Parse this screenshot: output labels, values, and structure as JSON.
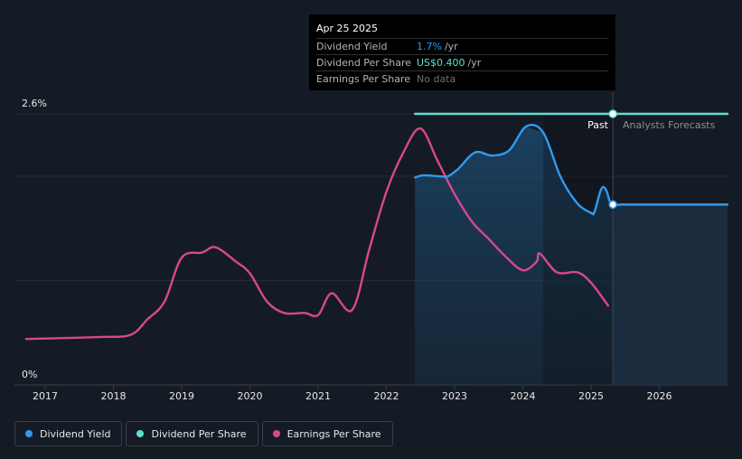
{
  "chart_data": {
    "type": "line",
    "y_axis": {
      "min_label": "0%",
      "max_label": "2.6%",
      "ylim": [
        0,
        2.6
      ]
    },
    "x_axis": {
      "xlim": [
        2016.55,
        2027.0
      ],
      "ticks": [
        "2017",
        "2018",
        "2019",
        "2020",
        "2021",
        "2022",
        "2023",
        "2024",
        "2025",
        "2026"
      ]
    },
    "past_label": "Past",
    "forecast_label": "Analysts Forecasts",
    "forecast_start": 2025.32,
    "shaded_start": 2022.42,
    "shaded_dark_start": 2024.3,
    "series": [
      {
        "name": "Dividend Yield",
        "color": "#2e9bf0",
        "points": [
          [
            2022.42,
            1.99
          ],
          [
            2022.55,
            2.01
          ],
          [
            2022.8,
            2.0
          ],
          [
            2022.9,
            2.0
          ],
          [
            2023.05,
            2.07
          ],
          [
            2023.3,
            2.23
          ],
          [
            2023.55,
            2.2
          ],
          [
            2023.8,
            2.25
          ],
          [
            2024.05,
            2.48
          ],
          [
            2024.3,
            2.42
          ],
          [
            2024.55,
            2.0
          ],
          [
            2024.8,
            1.74
          ],
          [
            2025.0,
            1.65
          ],
          [
            2025.05,
            1.66
          ],
          [
            2025.15,
            1.88
          ],
          [
            2025.22,
            1.87
          ],
          [
            2025.3,
            1.73
          ],
          [
            2025.45,
            1.73
          ],
          [
            2026.0,
            1.73
          ],
          [
            2027.0,
            1.73
          ]
        ]
      },
      {
        "name": "Dividend Per Share",
        "color": "#5fe0cf",
        "points": [
          [
            2022.42,
            2.6
          ],
          [
            2025.32,
            2.6
          ],
          [
            2027.0,
            2.6
          ]
        ]
      },
      {
        "name": "Earnings Per Share",
        "color": "#d6488f",
        "points": [
          [
            2016.72,
            0.44
          ],
          [
            2017.3,
            0.45
          ],
          [
            2017.8,
            0.46
          ],
          [
            2018.25,
            0.48
          ],
          [
            2018.5,
            0.63
          ],
          [
            2018.75,
            0.8
          ],
          [
            2019.0,
            1.22
          ],
          [
            2019.3,
            1.27
          ],
          [
            2019.5,
            1.32
          ],
          [
            2019.8,
            1.18
          ],
          [
            2020.0,
            1.07
          ],
          [
            2020.25,
            0.8
          ],
          [
            2020.5,
            0.69
          ],
          [
            2020.8,
            0.69
          ],
          [
            2021.0,
            0.67
          ],
          [
            2021.2,
            0.88
          ],
          [
            2021.5,
            0.72
          ],
          [
            2021.75,
            1.3
          ],
          [
            2022.0,
            1.85
          ],
          [
            2022.25,
            2.23
          ],
          [
            2022.5,
            2.46
          ],
          [
            2022.75,
            2.15
          ],
          [
            2023.0,
            1.83
          ],
          [
            2023.25,
            1.57
          ],
          [
            2023.5,
            1.4
          ],
          [
            2023.75,
            1.23
          ],
          [
            2024.0,
            1.1
          ],
          [
            2024.2,
            1.18
          ],
          [
            2024.25,
            1.26
          ],
          [
            2024.5,
            1.08
          ],
          [
            2024.8,
            1.08
          ],
          [
            2025.0,
            0.98
          ],
          [
            2025.25,
            0.76
          ]
        ]
      }
    ],
    "markers": [
      {
        "series": "Dividend Per Share",
        "x": 2025.32,
        "y": 2.6
      },
      {
        "series": "Dividend Yield",
        "x": 2025.32,
        "y": 1.73
      }
    ]
  },
  "tooltip": {
    "date": "Apr 25 2025",
    "rows": [
      {
        "label": "Dividend Yield",
        "value": "1.7%",
        "unit": "/yr",
        "color": "#2e9bf0"
      },
      {
        "label": "Dividend Per Share",
        "value": "US$0.400",
        "unit": "/yr",
        "color": "#5fe0cf"
      },
      {
        "label": "Earnings Per Share",
        "value": "No data",
        "unit": "",
        "color": "#6b6f76"
      }
    ]
  },
  "legend": [
    {
      "label": "Dividend Yield",
      "color": "#2e9bf0"
    },
    {
      "label": "Dividend Per Share",
      "color": "#5fe0cf"
    },
    {
      "label": "Earnings Per Share",
      "color": "#d6488f"
    }
  ]
}
